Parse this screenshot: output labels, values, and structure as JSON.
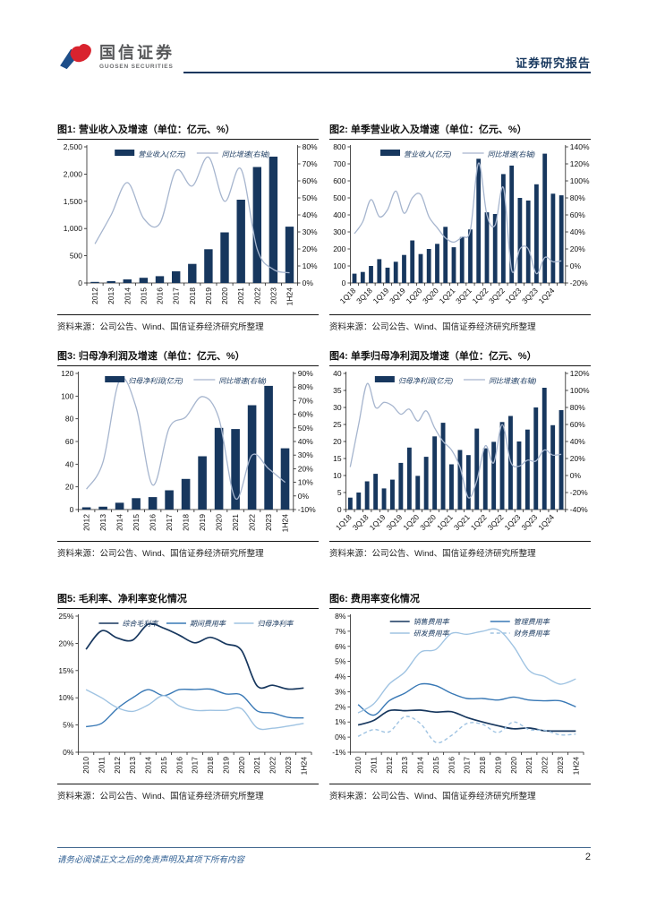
{
  "header": {
    "brand_cn": "国信证券",
    "brand_en": "GUOSEN SECURITIES",
    "report_type": "证券研究报告"
  },
  "footer": {
    "disclaimer": "请务必阅读正文之后的免责声明及其项下所有内容",
    "page_number": "2"
  },
  "source_note": "资料来源：公司公告、Wind、国信证券经济研究所整理",
  "colors": {
    "navy": "#17375E",
    "growth_line": "#A6B5CE",
    "medium_blue": "#3878B5",
    "light_blue": "#9FC3E2",
    "rule_dark": "#151515",
    "header_accent": "#17375E",
    "footer_text": "#2F5F93",
    "logo_red": "#D9232E",
    "logo_blue": "#1D4E89"
  },
  "chart_data": [
    {
      "type": "combo",
      "title": "图1: 营业收入及增速（单位：亿元、%）",
      "categories": [
        "2012",
        "2013",
        "2014",
        "2015",
        "2016",
        "2017",
        "2018",
        "2019",
        "2020",
        "2021",
        "2022",
        "2023",
        "1H24"
      ],
      "bar_series": {
        "name": "营业收入(亿元)",
        "values": [
          20,
          35,
          65,
          95,
          125,
          215,
          350,
          620,
          930,
          1530,
          2130,
          2320,
          1035
        ]
      },
      "line_series": {
        "name": "同比增速(右轴)",
        "values": [
          23,
          40,
          59,
          38,
          35,
          66,
          57,
          74,
          48,
          67,
          20,
          8,
          6
        ]
      },
      "left_axis": {
        "min": 0,
        "max": 2500,
        "step": 500,
        "format": "thousand"
      },
      "right_axis": {
        "min": 0,
        "max": 80,
        "step": 10,
        "format": "percent"
      },
      "x_label_rotate": 90,
      "x_label_every": 1
    },
    {
      "type": "combo",
      "title": "图2: 单季营业收入及增速（单位：亿元、%）",
      "categories": [
        "1Q18",
        "2Q18",
        "3Q18",
        "4Q18",
        "1Q19",
        "2Q19",
        "3Q19",
        "4Q19",
        "1Q20",
        "2Q20",
        "3Q20",
        "4Q20",
        "1Q21",
        "2Q21",
        "3Q21",
        "4Q21",
        "1Q22",
        "2Q22",
        "3Q22",
        "4Q22",
        "1Q23",
        "2Q23",
        "3Q23",
        "4Q23",
        "1Q24",
        "2Q24"
      ],
      "bar_series": {
        "name": "营业收入(亿元)",
        "values": [
          55,
          65,
          100,
          140,
          90,
          125,
          165,
          250,
          170,
          200,
          230,
          330,
          210,
          270,
          315,
          730,
          415,
          405,
          640,
          690,
          500,
          485,
          580,
          760,
          525,
          515
        ]
      },
      "line_series": {
        "name": "同比增速(右轴)",
        "values": [
          38,
          52,
          78,
          58,
          66,
          88,
          62,
          80,
          84,
          58,
          45,
          33,
          28,
          34,
          42,
          121,
          60,
          48,
          92,
          -5,
          20,
          20,
          -9,
          10,
          5,
          6
        ]
      },
      "left_axis": {
        "min": 0,
        "max": 800,
        "step": 100,
        "format": "plain"
      },
      "right_axis": {
        "min": -20,
        "max": 140,
        "step": 20,
        "format": "percent"
      },
      "x_label_rotate": 45,
      "x_label_every": 2
    },
    {
      "type": "combo",
      "title": "图3: 归母净利润及增速（单位：亿元、%）",
      "categories": [
        "2012",
        "2013",
        "2014",
        "2015",
        "2016",
        "2017",
        "2018",
        "2019",
        "2020",
        "2021",
        "2022",
        "2023",
        "1H24"
      ],
      "bar_series": {
        "name": "归母净利润(亿元)",
        "values": [
          2,
          2.5,
          6,
          10,
          11,
          17,
          27,
          47,
          72,
          71,
          92,
          109,
          54
        ]
      },
      "line_series": {
        "name": "同比增速(右轴)",
        "values": [
          5,
          25,
          85,
          65,
          8,
          50,
          58,
          73,
          57,
          -2,
          30,
          20,
          10
        ]
      },
      "left_axis": {
        "min": 0,
        "max": 120,
        "step": 20,
        "format": "plain"
      },
      "right_axis": {
        "min": -10,
        "max": 90,
        "step": 10,
        "format": "percent"
      },
      "x_label_rotate": 90,
      "x_label_every": 1
    },
    {
      "type": "combo",
      "title": "图4: 单季归母净利润及增速（单位：亿元、%）",
      "categories": [
        "1Q18",
        "2Q18",
        "3Q18",
        "4Q18",
        "1Q19",
        "2Q19",
        "3Q19",
        "4Q19",
        "1Q20",
        "2Q20",
        "3Q20",
        "4Q20",
        "1Q21",
        "2Q21",
        "3Q21",
        "4Q21",
        "1Q22",
        "2Q22",
        "3Q22",
        "4Q22",
        "1Q23",
        "2Q23",
        "3Q23",
        "4Q23",
        "1Q24",
        "2Q24"
      ],
      "bar_series": {
        "name": "归母净利润(亿元)",
        "values": [
          3.5,
          5,
          8.3,
          10.5,
          6.2,
          8.8,
          13.7,
          18.2,
          9.9,
          15.5,
          21.5,
          25.5,
          13.3,
          17.5,
          16,
          23.8,
          18,
          19.9,
          25.7,
          27.5,
          20,
          23.5,
          30,
          35.8,
          24.8,
          29.2
        ]
      },
      "line_series": {
        "name": "同比增速(右轴)",
        "values": [
          10,
          60,
          108,
          80,
          86,
          82,
          72,
          78,
          64,
          76,
          56,
          40,
          30,
          10,
          -26,
          -6,
          35,
          15,
          60,
          16,
          11,
          18,
          17,
          30,
          24,
          25
        ]
      },
      "left_axis": {
        "min": 0,
        "max": 40,
        "step": 5,
        "format": "plain"
      },
      "right_axis": {
        "min": -40,
        "max": 120,
        "step": 20,
        "format": "percent"
      },
      "x_label_rotate": 45,
      "x_label_every": 2
    },
    {
      "type": "line",
      "title": "图5: 毛利率、净利率变化情况",
      "categories": [
        "2010",
        "2011",
        "2012",
        "2013",
        "2014",
        "2015",
        "2016",
        "2017",
        "2018",
        "2019",
        "2020",
        "2021",
        "2022",
        "2023",
        "1H24"
      ],
      "series": [
        {
          "name": "综合毛利率",
          "style": "navy",
          "dash": false,
          "values": [
            18.9,
            22.3,
            21.0,
            20.6,
            23.5,
            22.8,
            21.5,
            20.1,
            21.1,
            19.9,
            18.7,
            12.2,
            12.3,
            11.6,
            11.8
          ]
        },
        {
          "name": "期间费用率",
          "style": "medium",
          "dash": false,
          "values": [
            4.7,
            5.3,
            8.0,
            10.0,
            11.5,
            10.4,
            11.5,
            11.5,
            11.6,
            10.7,
            10.5,
            7.6,
            7.2,
            6.4,
            6.3
          ]
        },
        {
          "name": "归母净利率",
          "style": "light",
          "dash": false,
          "values": [
            11.5,
            10.0,
            8.2,
            7.5,
            8.7,
            10.4,
            8.5,
            7.7,
            7.7,
            7.7,
            8.0,
            4.5,
            4.4,
            4.8,
            5.3
          ]
        }
      ],
      "y_axis": {
        "min": 0,
        "max": 25,
        "step": 5,
        "format": "percent"
      },
      "x_label_rotate": 90,
      "x_label_every": 1,
      "legend_layout": "row"
    },
    {
      "type": "line",
      "title": "图6: 费用率变化情况",
      "categories": [
        "2010",
        "2011",
        "2012",
        "2013",
        "2014",
        "2015",
        "2016",
        "2017",
        "2018",
        "2019",
        "2020",
        "2021",
        "2022",
        "2023",
        "1H24"
      ],
      "series": [
        {
          "name": "销售费用率",
          "style": "navy",
          "dash": false,
          "values": [
            0.8,
            1.1,
            1.75,
            1.75,
            1.78,
            1.65,
            1.68,
            1.3,
            1.0,
            0.75,
            0.55,
            0.6,
            0.42,
            0.4,
            0.4
          ]
        },
        {
          "name": "管理费用率",
          "style": "medium",
          "dash": false,
          "values": [
            2.15,
            1.45,
            2.4,
            2.9,
            3.5,
            3.4,
            2.9,
            2.55,
            2.55,
            2.45,
            2.65,
            2.45,
            2.4,
            2.4,
            2.0
          ]
        },
        {
          "name": "研发费用率",
          "style": "light",
          "dash": false,
          "values": [
            1.6,
            2.2,
            3.5,
            4.3,
            5.6,
            5.8,
            6.85,
            6.8,
            7.0,
            7.1,
            6.0,
            4.4,
            4.0,
            3.5,
            3.85
          ]
        },
        {
          "name": "财务费用率",
          "style": "light",
          "dash": true,
          "values": [
            0.05,
            0.5,
            0.35,
            1.35,
            0.9,
            -0.35,
            0.1,
            0.9,
            0.85,
            0.3,
            1.0,
            0.5,
            0.45,
            0.15,
            0.2
          ]
        }
      ],
      "y_axis": {
        "min": -1,
        "max": 8,
        "step": 1,
        "format": "percent"
      },
      "x_label_rotate": 90,
      "x_label_every": 1,
      "legend_layout": "grid"
    }
  ]
}
